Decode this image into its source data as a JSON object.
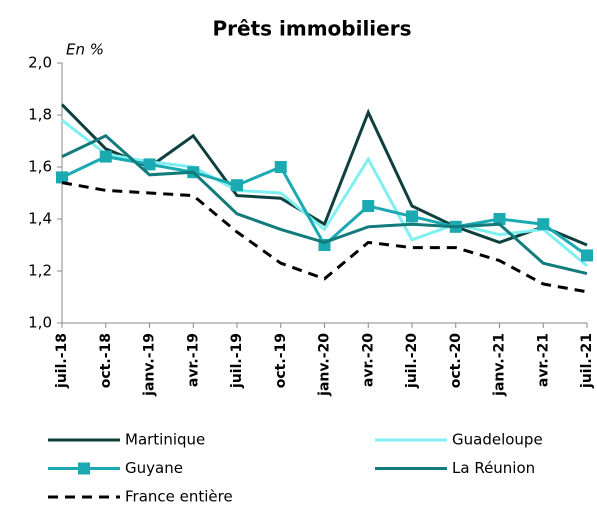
{
  "chart_data": {
    "type": "line",
    "title": "Prêts immobiliers",
    "subtitle": "En %",
    "categories": [
      "juil.-18",
      "oct.-18",
      "janv.-19",
      "avr.-19",
      "juil.-19",
      "oct.-19",
      "janv.-20",
      "avr.-20",
      "juil.-20",
      "oct.-20",
      "janv.-21",
      "avr.-21",
      "juil.-21"
    ],
    "series": [
      {
        "name": "Martinique",
        "color": "#0f3f3f",
        "values": [
          1.84,
          1.67,
          1.6,
          1.72,
          1.49,
          1.48,
          1.38,
          1.81,
          1.45,
          1.37,
          1.31,
          1.37,
          1.3
        ]
      },
      {
        "name": "Guadeloupe",
        "color": "#7ff0f2",
        "values": [
          1.78,
          1.65,
          1.62,
          1.6,
          1.51,
          1.5,
          1.36,
          1.63,
          1.32,
          1.38,
          1.34,
          1.36,
          1.22
        ]
      },
      {
        "name": "Guyane",
        "color": "#1ba9b2",
        "marker": "square",
        "values": [
          1.56,
          1.64,
          1.61,
          1.58,
          1.53,
          1.6,
          1.3,
          1.45,
          1.41,
          1.37,
          1.4,
          1.38,
          1.26
        ]
      },
      {
        "name": "La Réunion",
        "color": "#137b7b",
        "values": [
          1.64,
          1.72,
          1.57,
          1.58,
          1.42,
          1.36,
          1.31,
          1.37,
          1.38,
          1.37,
          1.38,
          1.23,
          1.19
        ]
      },
      {
        "name": "France entière",
        "color": "#000000",
        "dashed": true,
        "values": [
          1.54,
          1.51,
          1.5,
          1.49,
          1.35,
          1.23,
          1.17,
          1.31,
          1.29,
          1.29,
          1.24,
          1.15,
          1.12
        ]
      }
    ],
    "ylim": [
      1.0,
      2.0
    ],
    "yticks": [
      {
        "value": 1.0,
        "label": "1,0"
      },
      {
        "value": 1.2,
        "label": "1,2"
      },
      {
        "value": 1.4,
        "label": "1,4"
      },
      {
        "value": 1.6,
        "label": "1,6"
      },
      {
        "value": 1.8,
        "label": "1,8"
      },
      {
        "value": 2.0,
        "label": "2,0"
      }
    ],
    "grid": false,
    "legend": "bottom"
  }
}
